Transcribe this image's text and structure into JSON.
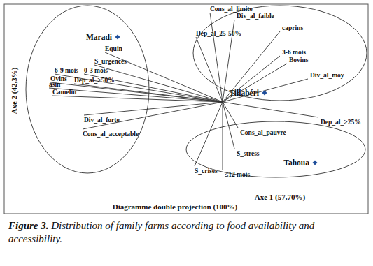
{
  "chart_data": {
    "type": "biplot",
    "xlabel": "Axe 1 (57,70%)",
    "ylabel": "Axe 2 (42,3%)",
    "subtitle": "Diagramme double projection (100%)",
    "caption_label": "Figure 3.",
    "caption": "Distribution of family farms according to food availability and accessibility.",
    "xlim": [
      -1.56,
      1.04
    ],
    "ylim": [
      -0.8,
      0.7
    ],
    "tick_labels": false,
    "grid": false,
    "color": "#1f4e9a",
    "marker": "diamond",
    "points": [
      {
        "label": "Maradi",
        "x": -0.75,
        "y": 0.465
      },
      {
        "label": "Tillabéri",
        "x": 0.3,
        "y": 0.065
      },
      {
        "label": "Tahoua",
        "x": 0.66,
        "y": -0.435
      }
    ],
    "vectors": [
      {
        "label": "Equin",
        "x": -0.84,
        "y": 0.355
      },
      {
        "label": "S_urgences",
        "x": -0.915,
        "y": 0.265
      },
      {
        "label": "6-9 mois",
        "x": -1.2,
        "y": 0.2
      },
      {
        "label": "0-3 mois",
        "x": -0.99,
        "y": 0.2
      },
      {
        "label": "Ovins",
        "x": -1.23,
        "y": 0.14
      },
      {
        "label": "Dep_al_>50%",
        "x": -1.06,
        "y": 0.13
      },
      {
        "label": "asin",
        "x": -1.24,
        "y": 0.1
      },
      {
        "label": "Camelin",
        "x": -1.215,
        "y": 0.045
      },
      {
        "label": "Div_al_forte",
        "x": -0.99,
        "y": -0.095
      },
      {
        "label": "Cons_al_acceptable",
        "x": -1.0,
        "y": -0.195
      },
      {
        "label": "Dep_al_25-50%",
        "x": -0.19,
        "y": 0.465
      },
      {
        "label": "Cons_al_limite",
        "x": -0.09,
        "y": 0.64
      },
      {
        "label": "Div_al_faible",
        "x": 0.085,
        "y": 0.59
      },
      {
        "label": "caprins",
        "x": 0.41,
        "y": 0.505
      },
      {
        "label": "3-6 mois",
        "x": 0.41,
        "y": 0.33
      },
      {
        "label": "Bovins",
        "x": 0.46,
        "y": 0.275
      },
      {
        "label": "Div_al_moy",
        "x": 0.61,
        "y": 0.165
      },
      {
        "label": "Dep_al_>25%",
        "x": 0.685,
        "y": -0.11
      },
      {
        "label": "Cons_al_pauvre",
        "x": 0.11,
        "y": -0.185
      },
      {
        "label": "S_stress",
        "x": 0.085,
        "y": -0.335
      },
      {
        "label": "S_crises",
        "x": -0.2,
        "y": -0.46
      },
      {
        "label": "≤12 mois",
        "x": 0.0,
        "y": -0.485
      }
    ],
    "ellipses": [
      {
        "cx": -0.965,
        "cy": 0.09,
        "rx": 0.44,
        "ry": 0.6
      },
      {
        "cx": 0.41,
        "cy": 0.35,
        "rx": 0.62,
        "ry": 0.34
      },
      {
        "cx": 0.38,
        "cy": -0.34,
        "rx": 0.64,
        "ry": 0.2
      }
    ]
  }
}
